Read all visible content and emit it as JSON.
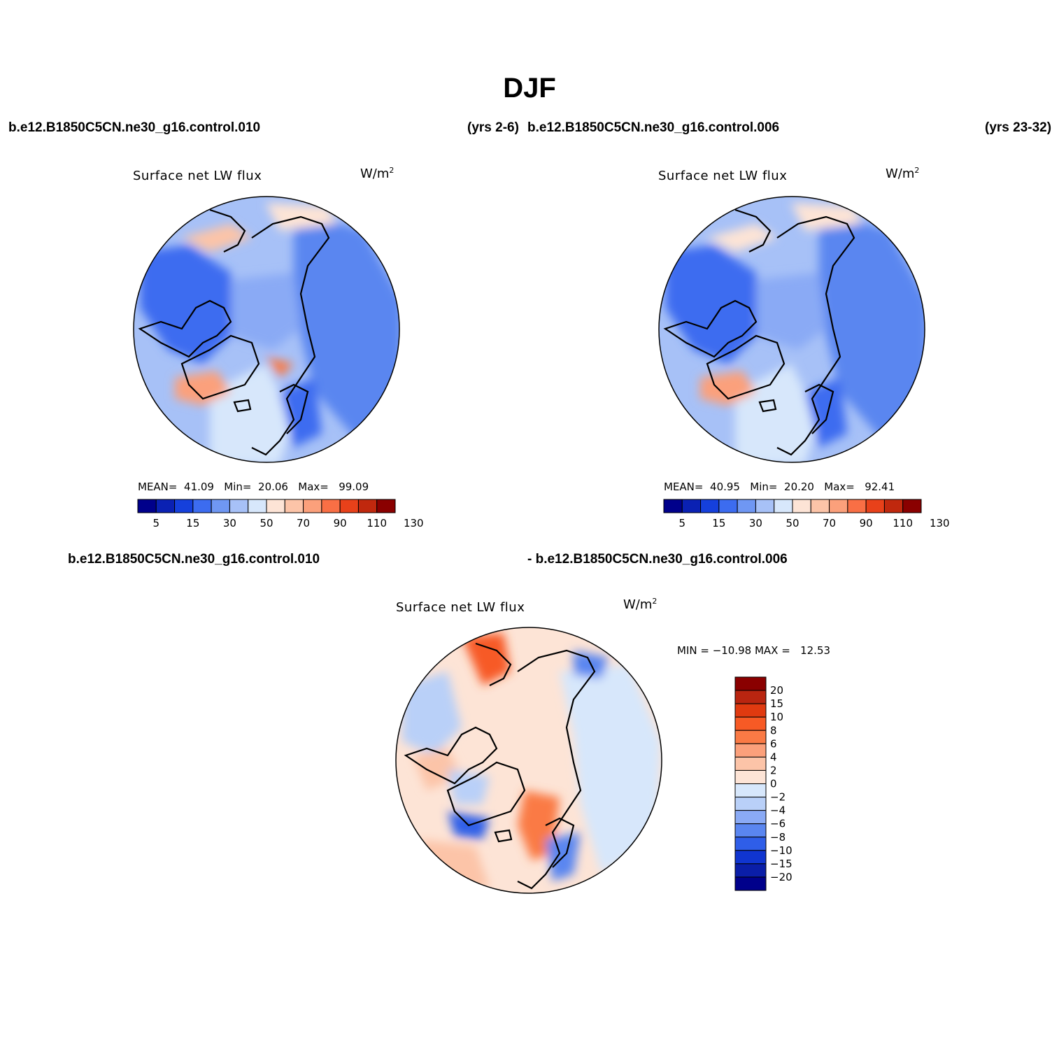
{
  "title": "DJF",
  "panels": [
    {
      "case_name": "b.e12.B1850C5CN.ne30_g16.control.010",
      "years": "(yrs 2-6)",
      "plot_title": "Surface net LW flux",
      "units": "W/m",
      "units_sup": "2",
      "stats": {
        "mean_label": "MEAN=",
        "mean": "41.09",
        "min_label": "Min=",
        "min": "20.06",
        "max_label": "Max=",
        "max": "99.09"
      }
    },
    {
      "case_name": "b.e12.B1850C5CN.ne30_g16.control.006",
      "years": "(yrs 23-32)",
      "plot_title": "Surface net LW flux",
      "units": "W/m",
      "units_sup": "2",
      "stats": {
        "mean_label": "MEAN=",
        "mean": "40.95",
        "min_label": "Min=",
        "min": "20.20",
        "max_label": "Max=",
        "max": "92.41"
      }
    }
  ],
  "colorbar_field": {
    "labels": [
      "5",
      "15",
      "30",
      "50",
      "70",
      "90",
      "110",
      "130"
    ],
    "colors": [
      "#00008b",
      "#0a21b3",
      "#1540dc",
      "#3c6cf0",
      "#6f97f3",
      "#a7c1f7",
      "#d7e7fb",
      "#fde4d6",
      "#fcc4a8",
      "#fba07b",
      "#f96f45",
      "#e8411a",
      "#c0280e",
      "#8a0000"
    ]
  },
  "difference": {
    "case_a": "b.e12.B1850C5CN.ne30_g16.control.010",
    "case_b": "- b.e12.B1850C5CN.ne30_g16.control.006",
    "plot_title": "Surface net LW flux",
    "units": "W/m",
    "units_sup": "2",
    "minmax": "MIN = −10.98 MAX =   12.53",
    "colorbar": {
      "labels": [
        "20",
        "15",
        "10",
        "8",
        "6",
        "4",
        "2",
        "0",
        "−2",
        "−4",
        "−6",
        "−8",
        "−10",
        "−15",
        "−20"
      ],
      "colors": [
        "#8a0000",
        "#b92510",
        "#e03a10",
        "#f75a25",
        "#fa7a45",
        "#fba07b",
        "#fcc4a8",
        "#fde4d6",
        "#d7e7fb",
        "#b9d0f8",
        "#8aaaf5",
        "#5a86f0",
        "#2f5ee8",
        "#1035d0",
        "#0a1ea8",
        "#00008b"
      ]
    }
  },
  "map_colors": {
    "coast": "#000000",
    "field_background": "#a7c1f7",
    "diff_background": "#fde4d6"
  }
}
